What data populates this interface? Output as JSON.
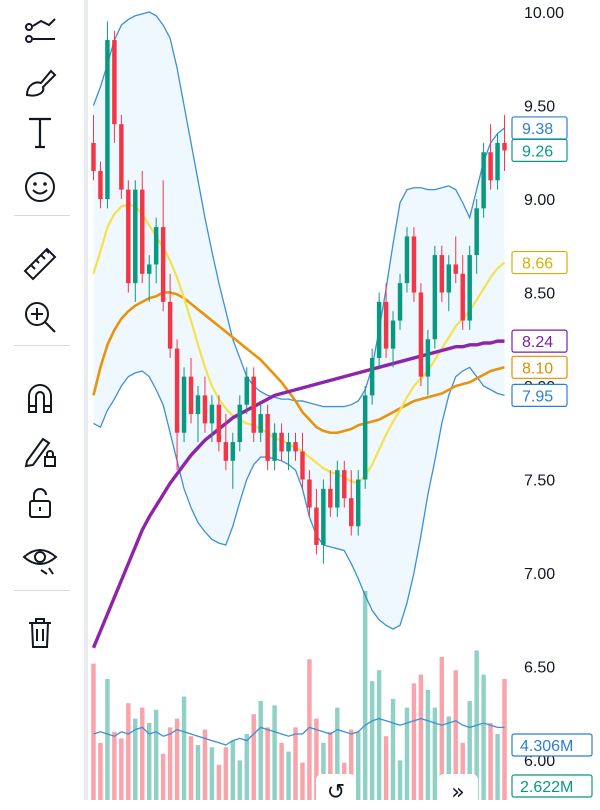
{
  "toolbar": {
    "tools": [
      {
        "name": "trend-line-tools-icon",
        "label": ""
      },
      {
        "name": "brush-icon",
        "label": ""
      },
      {
        "name": "text-tool-icon",
        "label": "T"
      },
      {
        "name": "emoji-icon",
        "label": ""
      },
      {
        "name": "ruler-icon",
        "label": ""
      },
      {
        "name": "zoom-in-icon",
        "label": ""
      },
      {
        "name": "magnet-icon",
        "label": ""
      },
      {
        "name": "lock-drawings-icon",
        "label": ""
      },
      {
        "name": "unlock-icon",
        "label": ""
      },
      {
        "name": "hide-drawings-icon",
        "label": ""
      },
      {
        "name": "trash-icon",
        "label": ""
      }
    ]
  },
  "chart_data": {
    "type": "candlestick",
    "price_axis": {
      "ticks": [
        "10.00",
        "9.50",
        "9.00",
        "8.50",
        "8.00",
        "7.50",
        "7.00",
        "6.50",
        "6.00"
      ],
      "range": [
        5.95,
        10.05
      ]
    },
    "last_value_tags": [
      {
        "label": "9.38",
        "value": 9.38,
        "color": "#2a7fd4"
      },
      {
        "label": "9.26",
        "value": 9.26,
        "color": "#089981"
      },
      {
        "label": "8.66",
        "value": 8.66,
        "color": "#d4b200"
      },
      {
        "label": "8.24",
        "value": 8.24,
        "color": "#7b1fa2"
      },
      {
        "label": "8.10",
        "value": 8.1,
        "color": "#e38c00"
      },
      {
        "label": "7.95",
        "value": 7.95,
        "color": "#2a7fd4"
      }
    ],
    "volume_tags": [
      {
        "label": "4.306M",
        "color": "#2a7fd4"
      },
      {
        "label": "2.622M",
        "color": "#089981"
      }
    ],
    "candles": [
      [
        9.3,
        9.45,
        9.1,
        9.15
      ],
      [
        9.15,
        9.2,
        8.95,
        9.0
      ],
      [
        9.0,
        9.95,
        8.95,
        9.85
      ],
      [
        9.85,
        9.9,
        9.3,
        9.4
      ],
      [
        9.4,
        9.45,
        9.0,
        9.05
      ],
      [
        9.05,
        9.1,
        8.5,
        8.55
      ],
      [
        8.55,
        9.1,
        8.45,
        9.05
      ],
      [
        9.05,
        9.15,
        8.55,
        8.6
      ],
      [
        8.6,
        8.7,
        8.45,
        8.65
      ],
      [
        8.65,
        8.9,
        8.55,
        8.85
      ],
      [
        8.85,
        9.1,
        8.4,
        8.45
      ],
      [
        8.45,
        8.6,
        8.15,
        8.2
      ],
      [
        8.2,
        8.25,
        7.55,
        7.75
      ],
      [
        7.75,
        8.1,
        7.7,
        8.05
      ],
      [
        8.05,
        8.15,
        7.8,
        7.85
      ],
      [
        7.85,
        8.0,
        7.7,
        7.95
      ],
      [
        7.95,
        8.05,
        7.75,
        7.8
      ],
      [
        7.8,
        7.95,
        7.7,
        7.9
      ],
      [
        7.9,
        7.95,
        7.65,
        7.7
      ],
      [
        7.7,
        7.85,
        7.55,
        7.6
      ],
      [
        7.6,
        7.75,
        7.45,
        7.7
      ],
      [
        7.7,
        7.95,
        7.65,
        7.9
      ],
      [
        7.9,
        8.1,
        7.85,
        8.05
      ],
      [
        8.05,
        8.1,
        7.7,
        7.75
      ],
      [
        7.75,
        7.9,
        7.7,
        7.85
      ],
      [
        7.85,
        7.9,
        7.55,
        7.6
      ],
      [
        7.6,
        7.8,
        7.55,
        7.75
      ],
      [
        7.75,
        7.8,
        7.6,
        7.65
      ],
      [
        7.65,
        7.75,
        7.55,
        7.7
      ],
      [
        7.7,
        7.75,
        7.6,
        7.65
      ],
      [
        7.65,
        7.75,
        7.45,
        7.5
      ],
      [
        7.5,
        7.55,
        7.3,
        7.35
      ],
      [
        7.35,
        7.45,
        7.1,
        7.15
      ],
      [
        7.15,
        7.5,
        7.05,
        7.45
      ],
      [
        7.45,
        7.55,
        7.3,
        7.35
      ],
      [
        7.35,
        7.6,
        7.3,
        7.55
      ],
      [
        7.55,
        7.6,
        7.35,
        7.4
      ],
      [
        7.4,
        7.55,
        7.2,
        7.25
      ],
      [
        7.25,
        7.55,
        7.2,
        7.5
      ],
      [
        7.5,
        8.0,
        7.45,
        7.95
      ],
      [
        7.95,
        8.2,
        7.9,
        8.15
      ],
      [
        8.15,
        8.5,
        8.1,
        8.45
      ],
      [
        8.45,
        8.55,
        8.15,
        8.2
      ],
      [
        8.2,
        8.4,
        8.1,
        8.35
      ],
      [
        8.35,
        8.6,
        8.3,
        8.55
      ],
      [
        8.55,
        8.85,
        8.5,
        8.8
      ],
      [
        8.8,
        8.85,
        8.45,
        8.5
      ],
      [
        8.5,
        8.55,
        8.0,
        8.05
      ],
      [
        8.05,
        8.3,
        7.95,
        8.25
      ],
      [
        8.25,
        8.75,
        8.2,
        8.7
      ],
      [
        8.7,
        8.75,
        8.45,
        8.5
      ],
      [
        8.5,
        8.7,
        8.4,
        8.65
      ],
      [
        8.65,
        8.8,
        8.55,
        8.6
      ],
      [
        8.6,
        8.7,
        8.3,
        8.35
      ],
      [
        8.35,
        8.75,
        8.3,
        8.7
      ],
      [
        8.7,
        9.0,
        8.6,
        8.95
      ],
      [
        8.95,
        9.3,
        8.9,
        9.25
      ],
      [
        9.25,
        9.4,
        9.05,
        9.1
      ],
      [
        9.1,
        9.35,
        9.05,
        9.3
      ],
      [
        9.3,
        9.45,
        9.15,
        9.26
      ]
    ],
    "volumes": [
      0.62,
      0.26,
      0.55,
      0.31,
      0.28,
      0.44,
      0.37,
      0.42,
      0.35,
      0.41,
      0.21,
      0.33,
      0.37,
      0.47,
      0.29,
      0.25,
      0.32,
      0.24,
      0.16,
      0.24,
      0.27,
      0.18,
      0.3,
      0.39,
      0.45,
      0.33,
      0.43,
      0.26,
      0.22,
      0.33,
      0.17,
      0.64,
      0.37,
      0.26,
      0.31,
      0.42,
      0.17,
      0.32,
      0.31,
      0.95,
      0.54,
      0.59,
      0.29,
      0.46,
      0.18,
      0.42,
      0.53,
      0.57,
      0.5,
      0.42,
      0.65,
      0.38,
      0.59,
      0.26,
      0.45,
      0.68,
      0.57,
      0.35,
      0.3,
      0.55
    ],
    "volume_ma": [
      0.3,
      0.31,
      0.3,
      0.29,
      0.31,
      0.3,
      0.32,
      0.33,
      0.3,
      0.31,
      0.29,
      0.3,
      0.32,
      0.31,
      0.3,
      0.29,
      0.28,
      0.27,
      0.26,
      0.25,
      0.27,
      0.28,
      0.27,
      0.3,
      0.33,
      0.32,
      0.31,
      0.3,
      0.29,
      0.3,
      0.3,
      0.33,
      0.32,
      0.31,
      0.3,
      0.32,
      0.31,
      0.3,
      0.31,
      0.34,
      0.36,
      0.37,
      0.36,
      0.35,
      0.34,
      0.35,
      0.36,
      0.37,
      0.36,
      0.35,
      0.34,
      0.35,
      0.36,
      0.34,
      0.33,
      0.34,
      0.35,
      0.34,
      0.33,
      0.33
    ],
    "ma_yellow": [
      8.6,
      8.72,
      8.85,
      8.92,
      8.96,
      8.97,
      8.96,
      8.92,
      8.86,
      8.8,
      8.74,
      8.67,
      8.58,
      8.47,
      8.35,
      8.22,
      8.1,
      8.0,
      7.93,
      7.88,
      7.84,
      7.82,
      7.8,
      7.79,
      7.77,
      7.75,
      7.72,
      7.71,
      7.69,
      7.67,
      7.65,
      7.62,
      7.59,
      7.56,
      7.54,
      7.53,
      7.51,
      7.49,
      7.48,
      7.52,
      7.58,
      7.66,
      7.74,
      7.81,
      7.87,
      7.94,
      8.0,
      8.04,
      8.08,
      8.14,
      8.2,
      8.26,
      8.32,
      8.36,
      8.4,
      8.46,
      8.52,
      8.58,
      8.63,
      8.66
    ],
    "ma_orange": [
      7.95,
      8.1,
      8.22,
      8.3,
      8.36,
      8.4,
      8.43,
      8.45,
      8.47,
      8.48,
      8.5,
      8.5,
      8.49,
      8.47,
      8.44,
      8.41,
      8.38,
      8.35,
      8.32,
      8.29,
      8.26,
      8.23,
      8.2,
      8.17,
      8.14,
      8.1,
      8.06,
      8.02,
      7.97,
      7.92,
      7.86,
      7.82,
      7.78,
      7.76,
      7.75,
      7.75,
      7.76,
      7.77,
      7.79,
      7.8,
      7.81,
      7.82,
      7.84,
      7.86,
      7.88,
      7.9,
      7.92,
      7.93,
      7.94,
      7.95,
      7.96,
      7.98,
      8.0,
      8.01,
      8.02,
      8.04,
      8.06,
      8.08,
      8.09,
      8.1
    ],
    "ma_purple": [
      6.6,
      6.69,
      6.78,
      6.87,
      6.96,
      7.05,
      7.14,
      7.23,
      7.3,
      7.36,
      7.42,
      7.48,
      7.53,
      7.58,
      7.63,
      7.67,
      7.71,
      7.74,
      7.77,
      7.8,
      7.83,
      7.85,
      7.87,
      7.89,
      7.91,
      7.93,
      7.95,
      7.96,
      7.97,
      7.98,
      7.99,
      8.0,
      8.01,
      8.02,
      8.03,
      8.04,
      8.05,
      8.06,
      8.07,
      8.08,
      8.09,
      8.1,
      8.11,
      8.12,
      8.13,
      8.14,
      8.15,
      8.16,
      8.17,
      8.18,
      8.19,
      8.2,
      8.21,
      8.21,
      8.22,
      8.22,
      8.23,
      8.23,
      8.24,
      8.24
    ],
    "bb_upper": [
      9.5,
      9.6,
      9.72,
      9.85,
      9.93,
      9.96,
      9.98,
      9.99,
      10.0,
      9.98,
      9.93,
      9.86,
      9.7,
      9.5,
      9.3,
      9.1,
      8.9,
      8.72,
      8.55,
      8.4,
      8.25,
      8.15,
      8.05,
      8.0,
      7.97,
      7.95,
      7.94,
      7.93,
      7.93,
      7.92,
      7.92,
      7.91,
      7.9,
      7.89,
      7.89,
      7.89,
      7.89,
      7.9,
      7.92,
      7.98,
      8.1,
      8.3,
      8.52,
      8.76,
      8.98,
      9.05,
      9.06,
      9.06,
      9.05,
      9.05,
      9.06,
      9.07,
      9.05,
      8.98,
      8.9,
      9.05,
      9.2,
      9.3,
      9.35,
      9.38
    ],
    "bb_lower": [
      7.8,
      7.78,
      7.87,
      7.93,
      8.0,
      8.05,
      8.07,
      8.08,
      8.05,
      7.98,
      7.9,
      7.75,
      7.6,
      7.45,
      7.35,
      7.27,
      7.22,
      7.18,
      7.16,
      7.15,
      7.25,
      7.38,
      7.5,
      7.58,
      7.62,
      7.62,
      7.61,
      7.6,
      7.58,
      7.55,
      7.45,
      7.3,
      7.2,
      7.15,
      7.14,
      7.13,
      7.12,
      7.05,
      6.97,
      6.88,
      6.8,
      6.75,
      6.72,
      6.7,
      6.72,
      6.84,
      7.0,
      7.2,
      7.42,
      7.6,
      7.8,
      7.95,
      8.05,
      8.08,
      8.1,
      8.05,
      8.0,
      7.98,
      7.96,
      7.95
    ]
  },
  "nav": {
    "reset_label": "↺",
    "scroll_right_label": "»"
  }
}
